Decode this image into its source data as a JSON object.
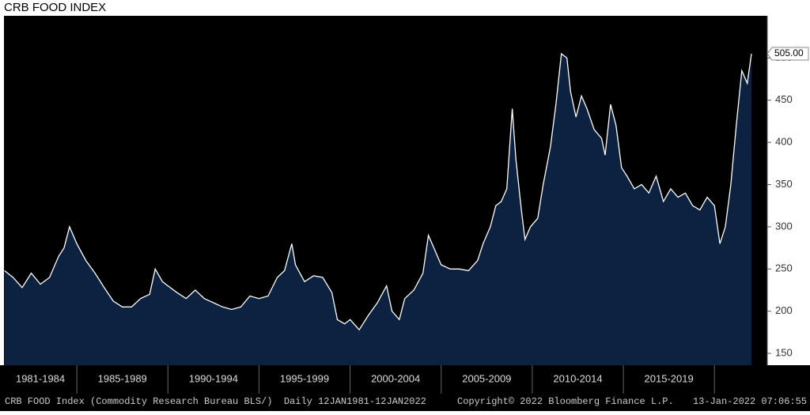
{
  "chart_data": {
    "type": "area",
    "title": "CRB FOOD INDEX",
    "series": [
      {
        "name": "CRB FOOD Index (Commodity Research Bureau BLS/)",
        "color": "#ffffff",
        "fill": "#0d2240",
        "x": [
          1981.03,
          1981.5,
          1982.0,
          1982.5,
          1983.0,
          1983.5,
          1984.0,
          1984.3,
          1984.6,
          1985.0,
          1985.5,
          1986.0,
          1986.5,
          1987.0,
          1987.5,
          1988.0,
          1988.5,
          1989.0,
          1989.3,
          1989.7,
          1990.0,
          1990.5,
          1991.0,
          1991.5,
          1992.0,
          1992.5,
          1993.0,
          1993.5,
          1994.0,
          1994.5,
          1995.0,
          1995.5,
          1996.0,
          1996.4,
          1996.8,
          1997.0,
          1997.5,
          1998.0,
          1998.5,
          1999.0,
          1999.3,
          1999.7,
          2000.0,
          2000.5,
          2001.0,
          2001.5,
          2002.0,
          2002.3,
          2002.7,
          2003.0,
          2003.5,
          2004.0,
          2004.3,
          2004.7,
          2005.0,
          2005.5,
          2006.0,
          2006.5,
          2007.0,
          2007.3,
          2007.7,
          2008.0,
          2008.3,
          2008.6,
          2008.9,
          2009.1,
          2009.4,
          2009.6,
          2009.9,
          2010.3,
          2010.6,
          2011.0,
          2011.3,
          2011.6,
          2011.9,
          2012.1,
          2012.4,
          2012.7,
          2013.0,
          2013.4,
          2013.8,
          2014.0,
          2014.3,
          2014.6,
          2014.9,
          2015.2,
          2015.6,
          2016.0,
          2016.4,
          2016.8,
          2017.2,
          2017.6,
          2018.0,
          2018.4,
          2018.8,
          2019.2,
          2019.6,
          2020.0,
          2020.3,
          2020.6,
          2020.9,
          2021.2,
          2021.5,
          2021.8,
          2022.03
        ],
        "values": [
          248,
          240,
          228,
          245,
          232,
          240,
          265,
          275,
          300,
          280,
          260,
          245,
          228,
          212,
          205,
          205,
          215,
          220,
          250,
          235,
          230,
          222,
          215,
          225,
          215,
          210,
          205,
          202,
          205,
          218,
          215,
          218,
          240,
          248,
          280,
          255,
          235,
          242,
          240,
          222,
          190,
          185,
          190,
          178,
          195,
          210,
          230,
          200,
          190,
          215,
          225,
          245,
          290,
          270,
          255,
          250,
          250,
          248,
          260,
          280,
          300,
          325,
          330,
          345,
          440,
          380,
          320,
          285,
          300,
          310,
          350,
          395,
          445,
          505,
          500,
          460,
          430,
          455,
          440,
          415,
          405,
          385,
          445,
          420,
          370,
          360,
          345,
          350,
          340,
          360,
          330,
          345,
          335,
          340,
          325,
          320,
          335,
          325,
          280,
          300,
          350,
          420,
          485,
          470,
          505
        ]
      }
    ],
    "last_label": {
      "value": 505,
      "label": "505.00"
    },
    "xlim": [
      1981.0,
      2022.9
    ],
    "xticks": [
      {
        "value": 1981,
        "label": "1981-1984"
      },
      {
        "value": 1985,
        "label": "1985-1989"
      },
      {
        "value": 1990,
        "label": "1990-1994"
      },
      {
        "value": 1995,
        "label": "1995-1999"
      },
      {
        "value": 2000,
        "label": "2000-2004"
      },
      {
        "value": 2005,
        "label": "2005-2009"
      },
      {
        "value": 2010,
        "label": "2010-2014"
      },
      {
        "value": 2015,
        "label": "2015-2019"
      },
      {
        "value": 2020,
        "label": null
      }
    ],
    "ylim": [
      136,
      550
    ],
    "yticks": [
      150,
      200,
      250,
      300,
      350,
      400,
      450,
      500
    ],
    "footer": {
      "description": "CRB FOOD Index (Commodity Research Bureau BLS/)  Daily 12JAN1981-12JAN2022",
      "copyright": "Copyright© 2022 Bloomberg Finance L.P.",
      "timestamp": "13-Jan-2022 07:06:55"
    }
  }
}
